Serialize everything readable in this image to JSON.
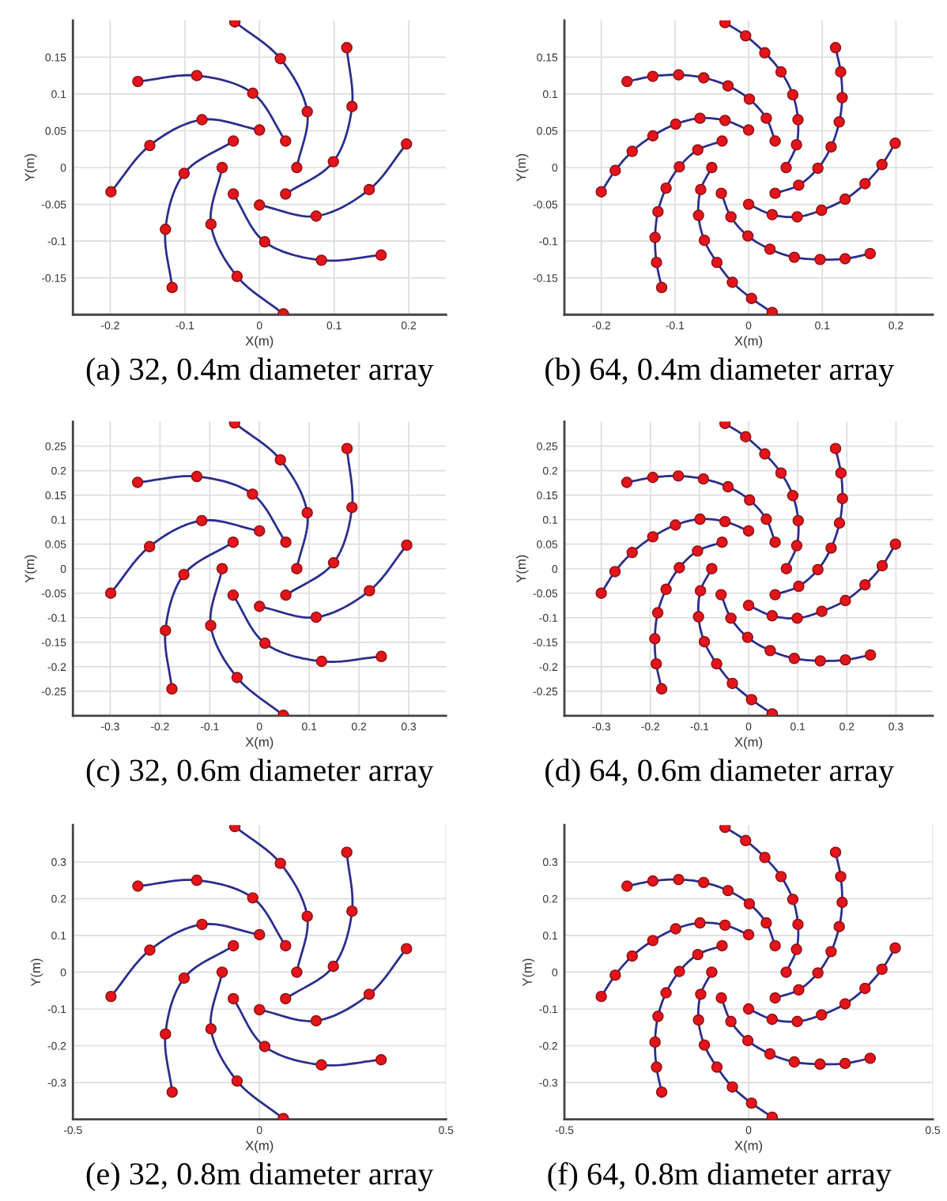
{
  "chart_data": [
    {
      "type": "line",
      "xlabel": "X(m)",
      "ylabel": "Y(m)",
      "annotations": [
        "(a) 32, 0.4m diameter array"
      ],
      "xlim": [
        -0.25,
        0.25
      ],
      "ylim": [
        -0.2,
        0.2
      ],
      "xticks": [
        -0.2,
        -0.1,
        0,
        0.1,
        0.2
      ],
      "yticks": [
        -0.15,
        -0.1,
        -0.05,
        0,
        0.05,
        0.1,
        0.15
      ],
      "grid": true,
      "series": [
        {
          "type": "line",
          "color": "#2a2e8c",
          "x": [
            0.05,
            0.064,
            0.028,
            -0.033,
            null,
            0.035,
            0.099,
            0.124,
            0.117,
            null,
            0,
            0.076,
            0.147,
            0.197,
            null,
            -0.035,
            0.007,
            0.083,
            0.163,
            null,
            -0.05,
            -0.065,
            -0.03,
            0.032,
            null,
            -0.035,
            -0.101,
            -0.126,
            -0.117,
            null,
            0,
            -0.077,
            -0.147,
            -0.199,
            null,
            0.035,
            -0.009,
            -0.084,
            -0.163
          ],
          "values": [
            0,
            0.076,
            0.148,
            0.198,
            null,
            -0.036,
            0.008,
            0.083,
            0.163,
            null,
            -0.051,
            -0.066,
            -0.03,
            0.032,
            null,
            -0.036,
            -0.101,
            -0.126,
            -0.119,
            null,
            0,
            -0.077,
            -0.148,
            -0.199,
            null,
            0.036,
            -0.008,
            -0.084,
            -0.163,
            null,
            0.051,
            0.065,
            0.03,
            -0.033,
            null,
            0.036,
            0.101,
            0.125,
            0.117
          ]
        },
        {
          "type": "scatter",
          "color": "#e3141b",
          "marker": "circle",
          "x": [
            0.05,
            0.064,
            0.028,
            -0.033,
            null,
            0.035,
            0.099,
            0.124,
            0.117,
            null,
            0,
            0.076,
            0.147,
            0.197,
            null,
            -0.035,
            0.007,
            0.083,
            0.163,
            null,
            -0.05,
            -0.065,
            -0.03,
            0.032,
            null,
            -0.035,
            -0.101,
            -0.126,
            -0.117,
            null,
            0,
            -0.077,
            -0.147,
            -0.199,
            null,
            0.035,
            -0.009,
            -0.084,
            -0.163
          ],
          "values": [
            0,
            0.076,
            0.148,
            0.198,
            null,
            -0.036,
            0.008,
            0.083,
            0.163,
            null,
            -0.051,
            -0.066,
            -0.03,
            0.032,
            null,
            -0.036,
            -0.101,
            -0.126,
            -0.119,
            null,
            0,
            -0.077,
            -0.148,
            -0.199,
            null,
            0.036,
            -0.008,
            -0.084,
            -0.163,
            null,
            0.051,
            0.065,
            0.03,
            -0.033,
            null,
            0.036,
            0.101,
            0.125,
            0.117
          ]
        }
      ]
    },
    {
      "type": "line",
      "xlabel": "X(m)",
      "ylabel": "Y(m)",
      "annotations": [
        "(b) 64, 0.4m diameter array"
      ],
      "xlim": [
        -0.25,
        0.25
      ],
      "ylim": [
        -0.2,
        0.2
      ],
      "xticks": [
        -0.2,
        -0.1,
        0,
        0.1,
        0.2
      ],
      "yticks": [
        -0.15,
        -0.1,
        -0.05,
        0,
        0.05,
        0.1,
        0.15
      ],
      "grid": true,
      "series": [
        {
          "type": "line",
          "color": "#2a2e8c",
          "x": [
            0.051,
            0.065,
            0.067,
            0.06,
            0.044,
            0.022,
            -0.004,
            -0.032,
            null,
            0.036,
            0.068,
            0.094,
            0.112,
            0.123,
            0.127,
            0.125,
            0.118,
            null,
            0,
            0.032,
            0.066,
            0.099,
            0.131,
            0.158,
            0.181,
            0.199,
            null,
            -0.037,
            -0.024,
            -0.001,
            0.029,
            0.062,
            0.097,
            0.131,
            0.165,
            null,
            -0.05,
            -0.065,
            -0.068,
            -0.06,
            -0.043,
            -0.022,
            0.004,
            0.032,
            null,
            -0.036,
            -0.069,
            -0.094,
            -0.112,
            -0.123,
            -0.127,
            -0.125,
            -0.118,
            null,
            0,
            -0.032,
            -0.066,
            -0.099,
            -0.13,
            -0.158,
            -0.181,
            -0.2,
            null,
            0.036,
            0.024,
            0.001,
            -0.028,
            -0.061,
            -0.095,
            -0.13,
            -0.165
          ],
          "values": [
            0,
            0.031,
            0.065,
            0.099,
            0.13,
            0.156,
            0.179,
            0.197,
            null,
            -0.035,
            -0.024,
            -0.001,
            0.028,
            0.062,
            0.095,
            0.13,
            0.163,
            null,
            -0.05,
            -0.064,
            -0.067,
            -0.058,
            -0.043,
            -0.022,
            0.004,
            0.033,
            null,
            -0.035,
            -0.067,
            -0.093,
            -0.111,
            -0.122,
            -0.125,
            -0.124,
            -0.117,
            null,
            0,
            -0.03,
            -0.065,
            -0.099,
            -0.129,
            -0.156,
            -0.178,
            -0.197,
            null,
            0.036,
            0.024,
            0.001,
            -0.028,
            -0.06,
            -0.095,
            -0.129,
            -0.163,
            null,
            0.051,
            0.064,
            0.067,
            0.059,
            0.043,
            0.022,
            -0.004,
            -0.033,
            null,
            0.036,
            0.067,
            0.093,
            0.111,
            0.122,
            0.126,
            0.124,
            0.117
          ]
        },
        {
          "type": "scatter",
          "color": "#e3141b",
          "marker": "circle",
          "x": [
            0.051,
            0.065,
            0.067,
            0.06,
            0.044,
            0.022,
            -0.004,
            -0.032,
            null,
            0.036,
            0.068,
            0.094,
            0.112,
            0.123,
            0.127,
            0.125,
            0.118,
            null,
            0,
            0.032,
            0.066,
            0.099,
            0.131,
            0.158,
            0.181,
            0.199,
            null,
            -0.037,
            -0.024,
            -0.001,
            0.029,
            0.062,
            0.097,
            0.131,
            0.165,
            null,
            -0.05,
            -0.065,
            -0.068,
            -0.06,
            -0.043,
            -0.022,
            0.004,
            0.032,
            null,
            -0.036,
            -0.069,
            -0.094,
            -0.112,
            -0.123,
            -0.127,
            -0.125,
            -0.118,
            null,
            0,
            -0.032,
            -0.066,
            -0.099,
            -0.13,
            -0.158,
            -0.181,
            -0.2,
            null,
            0.036,
            0.024,
            0.001,
            -0.028,
            -0.061,
            -0.095,
            -0.13,
            -0.165
          ],
          "values": [
            0,
            0.031,
            0.065,
            0.099,
            0.13,
            0.156,
            0.179,
            0.197,
            null,
            -0.035,
            -0.024,
            -0.001,
            0.028,
            0.062,
            0.095,
            0.13,
            0.163,
            null,
            -0.05,
            -0.064,
            -0.067,
            -0.058,
            -0.043,
            -0.022,
            0.004,
            0.033,
            null,
            -0.035,
            -0.067,
            -0.093,
            -0.111,
            -0.122,
            -0.125,
            -0.124,
            -0.117,
            null,
            0,
            -0.03,
            -0.065,
            -0.099,
            -0.129,
            -0.156,
            -0.178,
            -0.197,
            null,
            0.036,
            0.024,
            0.001,
            -0.028,
            -0.06,
            -0.095,
            -0.129,
            -0.163,
            null,
            0.051,
            0.064,
            0.067,
            0.059,
            0.043,
            0.022,
            -0.004,
            -0.033,
            null,
            0.036,
            0.067,
            0.093,
            0.111,
            0.122,
            0.126,
            0.124,
            0.117
          ]
        }
      ]
    },
    {
      "type": "line",
      "xlabel": "X(m)",
      "ylabel": "Y(m)",
      "annotations": [
        "(c) 32, 0.6m diameter array"
      ],
      "xlim": [
        -0.375,
        0.375
      ],
      "ylim": [
        -0.3,
        0.3
      ],
      "xticks": [
        -0.3,
        -0.2,
        -0.1,
        0,
        0.1,
        0.2,
        0.3
      ],
      "yticks": [
        -0.25,
        -0.2,
        -0.15,
        -0.1,
        -0.05,
        0,
        0.05,
        0.1,
        0.15,
        0.2,
        0.25
      ],
      "grid": true,
      "series": [
        {
          "type": "line",
          "color": "#2a2e8c",
          "x": [
            0.075,
            0.096,
            0.042,
            -0.05,
            null,
            0.053,
            0.149,
            0.186,
            0.176,
            null,
            0,
            0.114,
            0.221,
            0.296,
            null,
            -0.053,
            0.011,
            0.125,
            0.245,
            null,
            -0.075,
            -0.098,
            -0.045,
            0.048,
            null,
            -0.053,
            -0.152,
            -0.189,
            -0.176,
            null,
            0,
            -0.116,
            -0.221,
            -0.299,
            null,
            0.053,
            -0.014,
            -0.126,
            -0.245
          ],
          "values": [
            0,
            0.114,
            0.222,
            0.297,
            null,
            -0.054,
            0.012,
            0.125,
            0.245,
            null,
            -0.077,
            -0.099,
            -0.045,
            0.048,
            null,
            -0.054,
            -0.152,
            -0.189,
            -0.179,
            null,
            0,
            -0.116,
            -0.222,
            -0.299,
            null,
            0.054,
            -0.012,
            -0.126,
            -0.245,
            null,
            0.077,
            0.098,
            0.045,
            -0.05,
            null,
            0.054,
            0.152,
            0.188,
            0.176
          ]
        },
        {
          "type": "scatter",
          "color": "#e3141b",
          "marker": "circle",
          "x": [
            0.075,
            0.096,
            0.042,
            -0.05,
            null,
            0.053,
            0.149,
            0.186,
            0.176,
            null,
            0,
            0.114,
            0.221,
            0.296,
            null,
            -0.053,
            0.011,
            0.125,
            0.245,
            null,
            -0.075,
            -0.098,
            -0.045,
            0.048,
            null,
            -0.053,
            -0.152,
            -0.189,
            -0.176,
            null,
            0,
            -0.116,
            -0.221,
            -0.299,
            null,
            0.053,
            -0.014,
            -0.126,
            -0.245
          ],
          "values": [
            0,
            0.114,
            0.222,
            0.297,
            null,
            -0.054,
            0.012,
            0.125,
            0.245,
            null,
            -0.077,
            -0.099,
            -0.045,
            0.048,
            null,
            -0.054,
            -0.152,
            -0.189,
            -0.179,
            null,
            0,
            -0.116,
            -0.222,
            -0.299,
            null,
            0.054,
            -0.012,
            -0.126,
            -0.245,
            null,
            0.077,
            0.098,
            0.045,
            -0.05,
            null,
            0.054,
            0.152,
            0.188,
            0.176
          ]
        }
      ]
    },
    {
      "type": "line",
      "xlabel": "X(m)",
      "ylabel": "Y(m)",
      "annotations": [
        "(d) 64, 0.6m diameter array"
      ],
      "xlim": [
        -0.375,
        0.375
      ],
      "ylim": [
        -0.3,
        0.3
      ],
      "xticks": [
        -0.3,
        -0.2,
        -0.1,
        0,
        0.1,
        0.2,
        0.3
      ],
      "yticks": [
        -0.25,
        -0.2,
        -0.15,
        -0.1,
        -0.05,
        0,
        0.05,
        0.1,
        0.15,
        0.2,
        0.25
      ],
      "grid": true,
      "series": [
        {
          "type": "line",
          "color": "#2a2e8c",
          "x": [
            0.077,
            0.098,
            0.101,
            0.09,
            0.066,
            0.033,
            -0.006,
            -0.048,
            null,
            0.054,
            0.102,
            0.141,
            0.168,
            0.185,
            0.191,
            0.188,
            0.177,
            null,
            0,
            0.048,
            0.099,
            0.149,
            0.197,
            0.237,
            0.272,
            0.299,
            null,
            -0.056,
            -0.036,
            -0.002,
            0.044,
            0.093,
            0.146,
            0.197,
            0.248,
            null,
            -0.075,
            -0.098,
            -0.102,
            -0.09,
            -0.065,
            -0.033,
            0.006,
            0.048,
            null,
            -0.054,
            -0.104,
            -0.141,
            -0.168,
            -0.185,
            -0.191,
            -0.188,
            -0.177,
            null,
            0,
            -0.048,
            -0.099,
            -0.149,
            -0.195,
            -0.237,
            -0.272,
            -0.3,
            null,
            0.054,
            0.036,
            0.002,
            -0.042,
            -0.092,
            -0.143,
            -0.195,
            -0.248
          ],
          "values": [
            0,
            0.047,
            0.098,
            0.149,
            0.195,
            0.234,
            0.269,
            0.296,
            null,
            -0.053,
            -0.036,
            -0.002,
            0.042,
            0.093,
            0.143,
            0.195,
            0.245,
            null,
            -0.075,
            -0.096,
            -0.101,
            -0.087,
            -0.065,
            -0.033,
            0.006,
            0.05,
            null,
            -0.053,
            -0.101,
            -0.14,
            -0.167,
            -0.183,
            -0.188,
            -0.186,
            -0.176,
            null,
            0,
            -0.045,
            -0.098,
            -0.149,
            -0.194,
            -0.234,
            -0.267,
            -0.296,
            null,
            0.054,
            0.036,
            0.002,
            -0.042,
            -0.09,
            -0.143,
            -0.194,
            -0.245,
            null,
            0.077,
            0.096,
            0.101,
            0.089,
            0.065,
            0.033,
            -0.006,
            -0.05,
            null,
            0.054,
            0.101,
            0.14,
            0.167,
            0.183,
            0.189,
            0.186,
            0.176
          ]
        },
        {
          "type": "scatter",
          "color": "#e3141b",
          "marker": "circle",
          "x": [
            0.077,
            0.098,
            0.101,
            0.09,
            0.066,
            0.033,
            -0.006,
            -0.048,
            null,
            0.054,
            0.102,
            0.141,
            0.168,
            0.185,
            0.191,
            0.188,
            0.177,
            null,
            0,
            0.048,
            0.099,
            0.149,
            0.197,
            0.237,
            0.272,
            0.299,
            null,
            -0.056,
            -0.036,
            -0.002,
            0.044,
            0.093,
            0.146,
            0.197,
            0.248,
            null,
            -0.075,
            -0.098,
            -0.102,
            -0.09,
            -0.065,
            -0.033,
            0.006,
            0.048,
            null,
            -0.054,
            -0.104,
            -0.141,
            -0.168,
            -0.185,
            -0.191,
            -0.188,
            -0.177,
            null,
            0,
            -0.048,
            -0.099,
            -0.149,
            -0.195,
            -0.237,
            -0.272,
            -0.3,
            null,
            0.054,
            0.036,
            0.002,
            -0.042,
            -0.092,
            -0.143,
            -0.195,
            -0.248
          ],
          "values": [
            0,
            0.047,
            0.098,
            0.149,
            0.195,
            0.234,
            0.269,
            0.296,
            null,
            -0.053,
            -0.036,
            -0.002,
            0.042,
            0.093,
            0.143,
            0.195,
            0.245,
            null,
            -0.075,
            -0.096,
            -0.101,
            -0.087,
            -0.065,
            -0.033,
            0.006,
            0.05,
            null,
            -0.053,
            -0.101,
            -0.14,
            -0.167,
            -0.183,
            -0.188,
            -0.186,
            -0.176,
            null,
            0,
            -0.045,
            -0.098,
            -0.149,
            -0.194,
            -0.234,
            -0.267,
            -0.296,
            null,
            0.054,
            0.036,
            0.002,
            -0.042,
            -0.09,
            -0.143,
            -0.194,
            -0.245,
            null,
            0.077,
            0.096,
            0.101,
            0.089,
            0.065,
            0.033,
            -0.006,
            -0.05,
            null,
            0.054,
            0.101,
            0.14,
            0.167,
            0.183,
            0.189,
            0.186,
            0.176
          ]
        }
      ]
    },
    {
      "type": "line",
      "xlabel": "X(m)",
      "ylabel": "Y(m)",
      "annotations": [
        "(e) 32, 0.8m diameter array"
      ],
      "xlim": [
        -0.5,
        0.5
      ],
      "ylim": [
        -0.4,
        0.4
      ],
      "xticks": [
        -0.5,
        0,
        0.5
      ],
      "yticks": [
        -0.3,
        -0.2,
        -0.1,
        0,
        0.1,
        0.2,
        0.3
      ],
      "grid": true,
      "series": [
        {
          "type": "line",
          "color": "#2a2e8c",
          "x": [
            0.1,
            0.128,
            0.056,
            -0.066,
            null,
            0.07,
            0.198,
            0.248,
            0.234,
            null,
            0,
            0.152,
            0.294,
            0.394,
            null,
            -0.07,
            0.014,
            0.166,
            0.326,
            null,
            -0.1,
            -0.13,
            -0.06,
            0.064,
            null,
            -0.07,
            -0.202,
            -0.252,
            -0.234,
            null,
            0,
            -0.154,
            -0.294,
            -0.398,
            null,
            0.07,
            -0.018,
            -0.168,
            -0.326
          ],
          "values": [
            0,
            0.152,
            0.296,
            0.396,
            null,
            -0.072,
            0.016,
            0.166,
            0.326,
            null,
            -0.102,
            -0.132,
            -0.06,
            0.064,
            null,
            -0.072,
            -0.202,
            -0.252,
            -0.238,
            null,
            0,
            -0.154,
            -0.296,
            -0.398,
            null,
            0.072,
            -0.016,
            -0.168,
            -0.326,
            null,
            0.102,
            0.13,
            0.06,
            -0.066,
            null,
            0.072,
            0.202,
            0.25,
            0.234
          ]
        },
        {
          "type": "scatter",
          "color": "#e3141b",
          "marker": "circle",
          "x": [
            0.1,
            0.128,
            0.056,
            -0.066,
            null,
            0.07,
            0.198,
            0.248,
            0.234,
            null,
            0,
            0.152,
            0.294,
            0.394,
            null,
            -0.07,
            0.014,
            0.166,
            0.326,
            null,
            -0.1,
            -0.13,
            -0.06,
            0.064,
            null,
            -0.07,
            -0.202,
            -0.252,
            -0.234,
            null,
            0,
            -0.154,
            -0.294,
            -0.398,
            null,
            0.07,
            -0.018,
            -0.168,
            -0.326
          ],
          "values": [
            0,
            0.152,
            0.296,
            0.396,
            null,
            -0.072,
            0.016,
            0.166,
            0.326,
            null,
            -0.102,
            -0.132,
            -0.06,
            0.064,
            null,
            -0.072,
            -0.202,
            -0.252,
            -0.238,
            null,
            0,
            -0.154,
            -0.296,
            -0.398,
            null,
            0.072,
            -0.016,
            -0.168,
            -0.326,
            null,
            0.102,
            0.13,
            0.06,
            -0.066,
            null,
            0.072,
            0.202,
            0.25,
            0.234
          ]
        }
      ]
    },
    {
      "type": "line",
      "xlabel": "X(m)",
      "ylabel": "Y(m)",
      "annotations": [
        "(f) 64, 0.8m diameter array"
      ],
      "xlim": [
        -0.5,
        0.5
      ],
      "ylim": [
        -0.4,
        0.4
      ],
      "xticks": [
        -0.5,
        0,
        0.5
      ],
      "yticks": [
        -0.3,
        -0.2,
        -0.1,
        0,
        0.1,
        0.2,
        0.3
      ],
      "grid": true,
      "series": [
        {
          "type": "line",
          "color": "#2a2e8c",
          "x": [
            0.102,
            0.13,
            0.134,
            0.12,
            0.088,
            0.044,
            -0.008,
            -0.064,
            null,
            0.072,
            0.136,
            0.188,
            0.224,
            0.246,
            0.254,
            0.25,
            0.236,
            null,
            0,
            0.064,
            0.132,
            0.198,
            0.262,
            0.316,
            0.362,
            0.398,
            null,
            -0.074,
            -0.048,
            -0.002,
            0.058,
            0.124,
            0.194,
            0.262,
            0.33,
            null,
            -0.1,
            -0.13,
            -0.136,
            -0.12,
            -0.086,
            -0.044,
            0.008,
            0.064,
            null,
            -0.072,
            -0.138,
            -0.188,
            -0.224,
            -0.246,
            -0.254,
            -0.25,
            -0.236,
            null,
            0,
            -0.064,
            -0.132,
            -0.198,
            -0.26,
            -0.316,
            -0.362,
            -0.4,
            null,
            0.072,
            0.048,
            0.002,
            -0.056,
            -0.122,
            -0.19,
            -0.26,
            -0.33
          ],
          "values": [
            0,
            0.062,
            0.13,
            0.198,
            0.26,
            0.312,
            0.358,
            0.394,
            null,
            -0.07,
            -0.048,
            -0.002,
            0.056,
            0.124,
            0.19,
            0.26,
            0.326,
            null,
            -0.1,
            -0.128,
            -0.134,
            -0.116,
            -0.086,
            -0.044,
            0.008,
            0.066,
            null,
            -0.07,
            -0.134,
            -0.186,
            -0.222,
            -0.244,
            -0.25,
            -0.248,
            -0.234,
            null,
            0,
            -0.06,
            -0.13,
            -0.198,
            -0.258,
            -0.312,
            -0.356,
            -0.394,
            null,
            0.072,
            0.048,
            0.002,
            -0.056,
            -0.12,
            -0.19,
            -0.258,
            -0.326,
            null,
            0.102,
            0.128,
            0.134,
            0.118,
            0.086,
            0.044,
            -0.008,
            -0.066,
            null,
            0.072,
            0.134,
            0.186,
            0.222,
            0.244,
            0.252,
            0.248,
            0.234
          ]
        },
        {
          "type": "scatter",
          "color": "#e3141b",
          "marker": "circle",
          "x": [
            0.102,
            0.13,
            0.134,
            0.12,
            0.088,
            0.044,
            -0.008,
            -0.064,
            null,
            0.072,
            0.136,
            0.188,
            0.224,
            0.246,
            0.254,
            0.25,
            0.236,
            null,
            0,
            0.064,
            0.132,
            0.198,
            0.262,
            0.316,
            0.362,
            0.398,
            null,
            -0.074,
            -0.048,
            -0.002,
            0.058,
            0.124,
            0.194,
            0.262,
            0.33,
            null,
            -0.1,
            -0.13,
            -0.136,
            -0.12,
            -0.086,
            -0.044,
            0.008,
            0.064,
            null,
            -0.072,
            -0.138,
            -0.188,
            -0.224,
            -0.246,
            -0.254,
            -0.25,
            -0.236,
            null,
            0,
            -0.064,
            -0.132,
            -0.198,
            -0.26,
            -0.316,
            -0.362,
            -0.4,
            null,
            0.072,
            0.048,
            0.002,
            -0.056,
            -0.122,
            -0.19,
            -0.26,
            -0.33
          ],
          "values": [
            0,
            0.062,
            0.13,
            0.198,
            0.26,
            0.312,
            0.358,
            0.394,
            null,
            -0.07,
            -0.048,
            -0.002,
            0.056,
            0.124,
            0.19,
            0.26,
            0.326,
            null,
            -0.1,
            -0.128,
            -0.134,
            -0.116,
            -0.086,
            -0.044,
            0.008,
            0.066,
            null,
            -0.07,
            -0.134,
            -0.186,
            -0.222,
            -0.244,
            -0.25,
            -0.248,
            -0.234,
            null,
            0,
            -0.06,
            -0.13,
            -0.198,
            -0.258,
            -0.312,
            -0.356,
            -0.394,
            null,
            0.072,
            0.048,
            0.002,
            -0.056,
            -0.12,
            -0.19,
            -0.258,
            -0.326,
            null,
            0.102,
            0.128,
            0.134,
            0.118,
            0.086,
            0.044,
            -0.008,
            -0.066,
            null,
            0.072,
            0.134,
            0.186,
            0.222,
            0.244,
            0.252,
            0.248,
            0.234
          ]
        }
      ]
    }
  ]
}
